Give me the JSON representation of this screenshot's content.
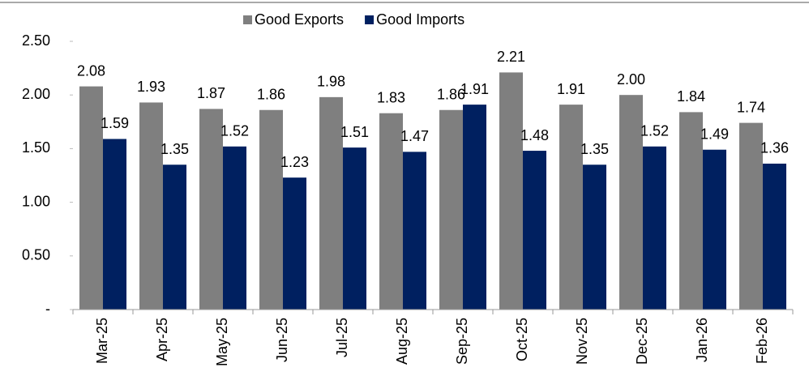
{
  "chart_data": {
    "type": "bar",
    "categories": [
      "Mar-25",
      "Apr-25",
      "May-25",
      "Jun-25",
      "Jul-25",
      "Aug-25",
      "Sep-25",
      "Oct-25",
      "Nov-25",
      "Dec-25",
      "Jan-26",
      "Feb-26"
    ],
    "series": [
      {
        "name": "Good Exports",
        "color": "#7f7f7f",
        "values": [
          2.08,
          1.93,
          1.87,
          1.86,
          1.98,
          1.83,
          1.86,
          2.21,
          1.91,
          2.0,
          1.84,
          1.74
        ],
        "value_labels": [
          "2.08",
          "1.93",
          "1.87",
          "1.86",
          "1.98",
          "1.83",
          "1.86",
          "2.21",
          "1.91",
          "2.00",
          "1.84",
          "1.74"
        ]
      },
      {
        "name": "Good Imports",
        "color": "#002060",
        "values": [
          1.59,
          1.35,
          1.52,
          1.23,
          1.51,
          1.47,
          1.91,
          1.48,
          1.35,
          1.52,
          1.49,
          1.36
        ],
        "value_labels": [
          "1.59",
          "1.35",
          "1.52",
          "1.23",
          "1.51",
          "1.47",
          "1.91",
          "1.48",
          "1.35",
          "1.52",
          "1.49",
          "1.36"
        ]
      }
    ],
    "ylim": [
      0,
      2.5
    ],
    "yticks": [
      {
        "value": 0,
        "label": "-"
      },
      {
        "value": 0.5,
        "label": "0.50"
      },
      {
        "value": 1,
        "label": "1.00"
      },
      {
        "value": 1.5,
        "label": "1.50"
      },
      {
        "value": 2,
        "label": "2.00"
      },
      {
        "value": 2.5,
        "label": "2.50"
      }
    ],
    "legend": "top"
  }
}
